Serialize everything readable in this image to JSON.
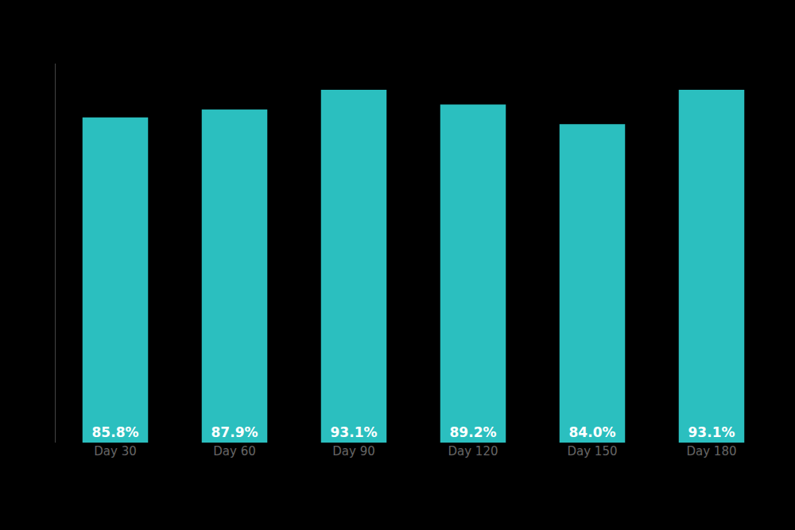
{
  "chart_data": {
    "type": "bar",
    "categories": [
      "Day 30",
      "Day 60",
      "Day 90",
      "Day 120",
      "Day 150",
      "Day 180"
    ],
    "values": [
      85.8,
      87.9,
      93.1,
      89.2,
      84.0,
      93.1
    ],
    "value_labels": [
      "85.8%",
      "87.9%",
      "93.1%",
      "89.2%",
      "84.0%",
      "93.1%"
    ],
    "data_labels": true,
    "color": "#2BBFBF",
    "ylim": [
      0,
      100
    ],
    "grid": false,
    "tick_labels": "x"
  }
}
